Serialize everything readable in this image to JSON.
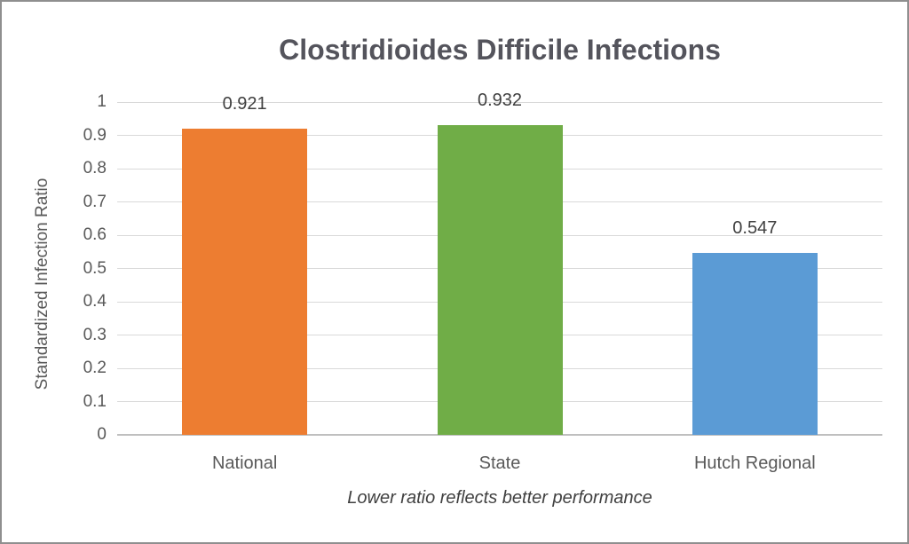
{
  "chart_data": {
    "type": "bar",
    "title": "Clostridioides Difficile Infections",
    "categories": [
      "National",
      "State",
      "Hutch Regional"
    ],
    "values": [
      0.921,
      0.932,
      0.547
    ],
    "value_labels": [
      "0.921",
      "0.932",
      "0.547"
    ],
    "bar_colors": [
      "#ED7D31",
      "#70AD47",
      "#5B9BD5"
    ],
    "ylabel": "Standardized Infection Ratio",
    "xlabel": "",
    "caption": "Lower ratio reflects better performance",
    "ylim": [
      0,
      1
    ],
    "yticks": [
      0,
      0.1,
      0.2,
      0.3,
      0.4,
      0.5,
      0.6,
      0.7,
      0.8,
      0.9,
      1
    ],
    "ytick_labels": [
      "0",
      "0.1",
      "0.2",
      "0.3",
      "0.4",
      "0.5",
      "0.6",
      "0.7",
      "0.8",
      "0.9",
      "1"
    ],
    "grid": "horizontal",
    "legend": "none"
  },
  "colors": {
    "background": "#FFFFFF",
    "border": "#8F8F8F",
    "gridline": "#D9D9D9",
    "axis_line": "#BFBFBF",
    "title_text": "#54545C",
    "tick_text": "#595959",
    "value_text": "#404040"
  }
}
